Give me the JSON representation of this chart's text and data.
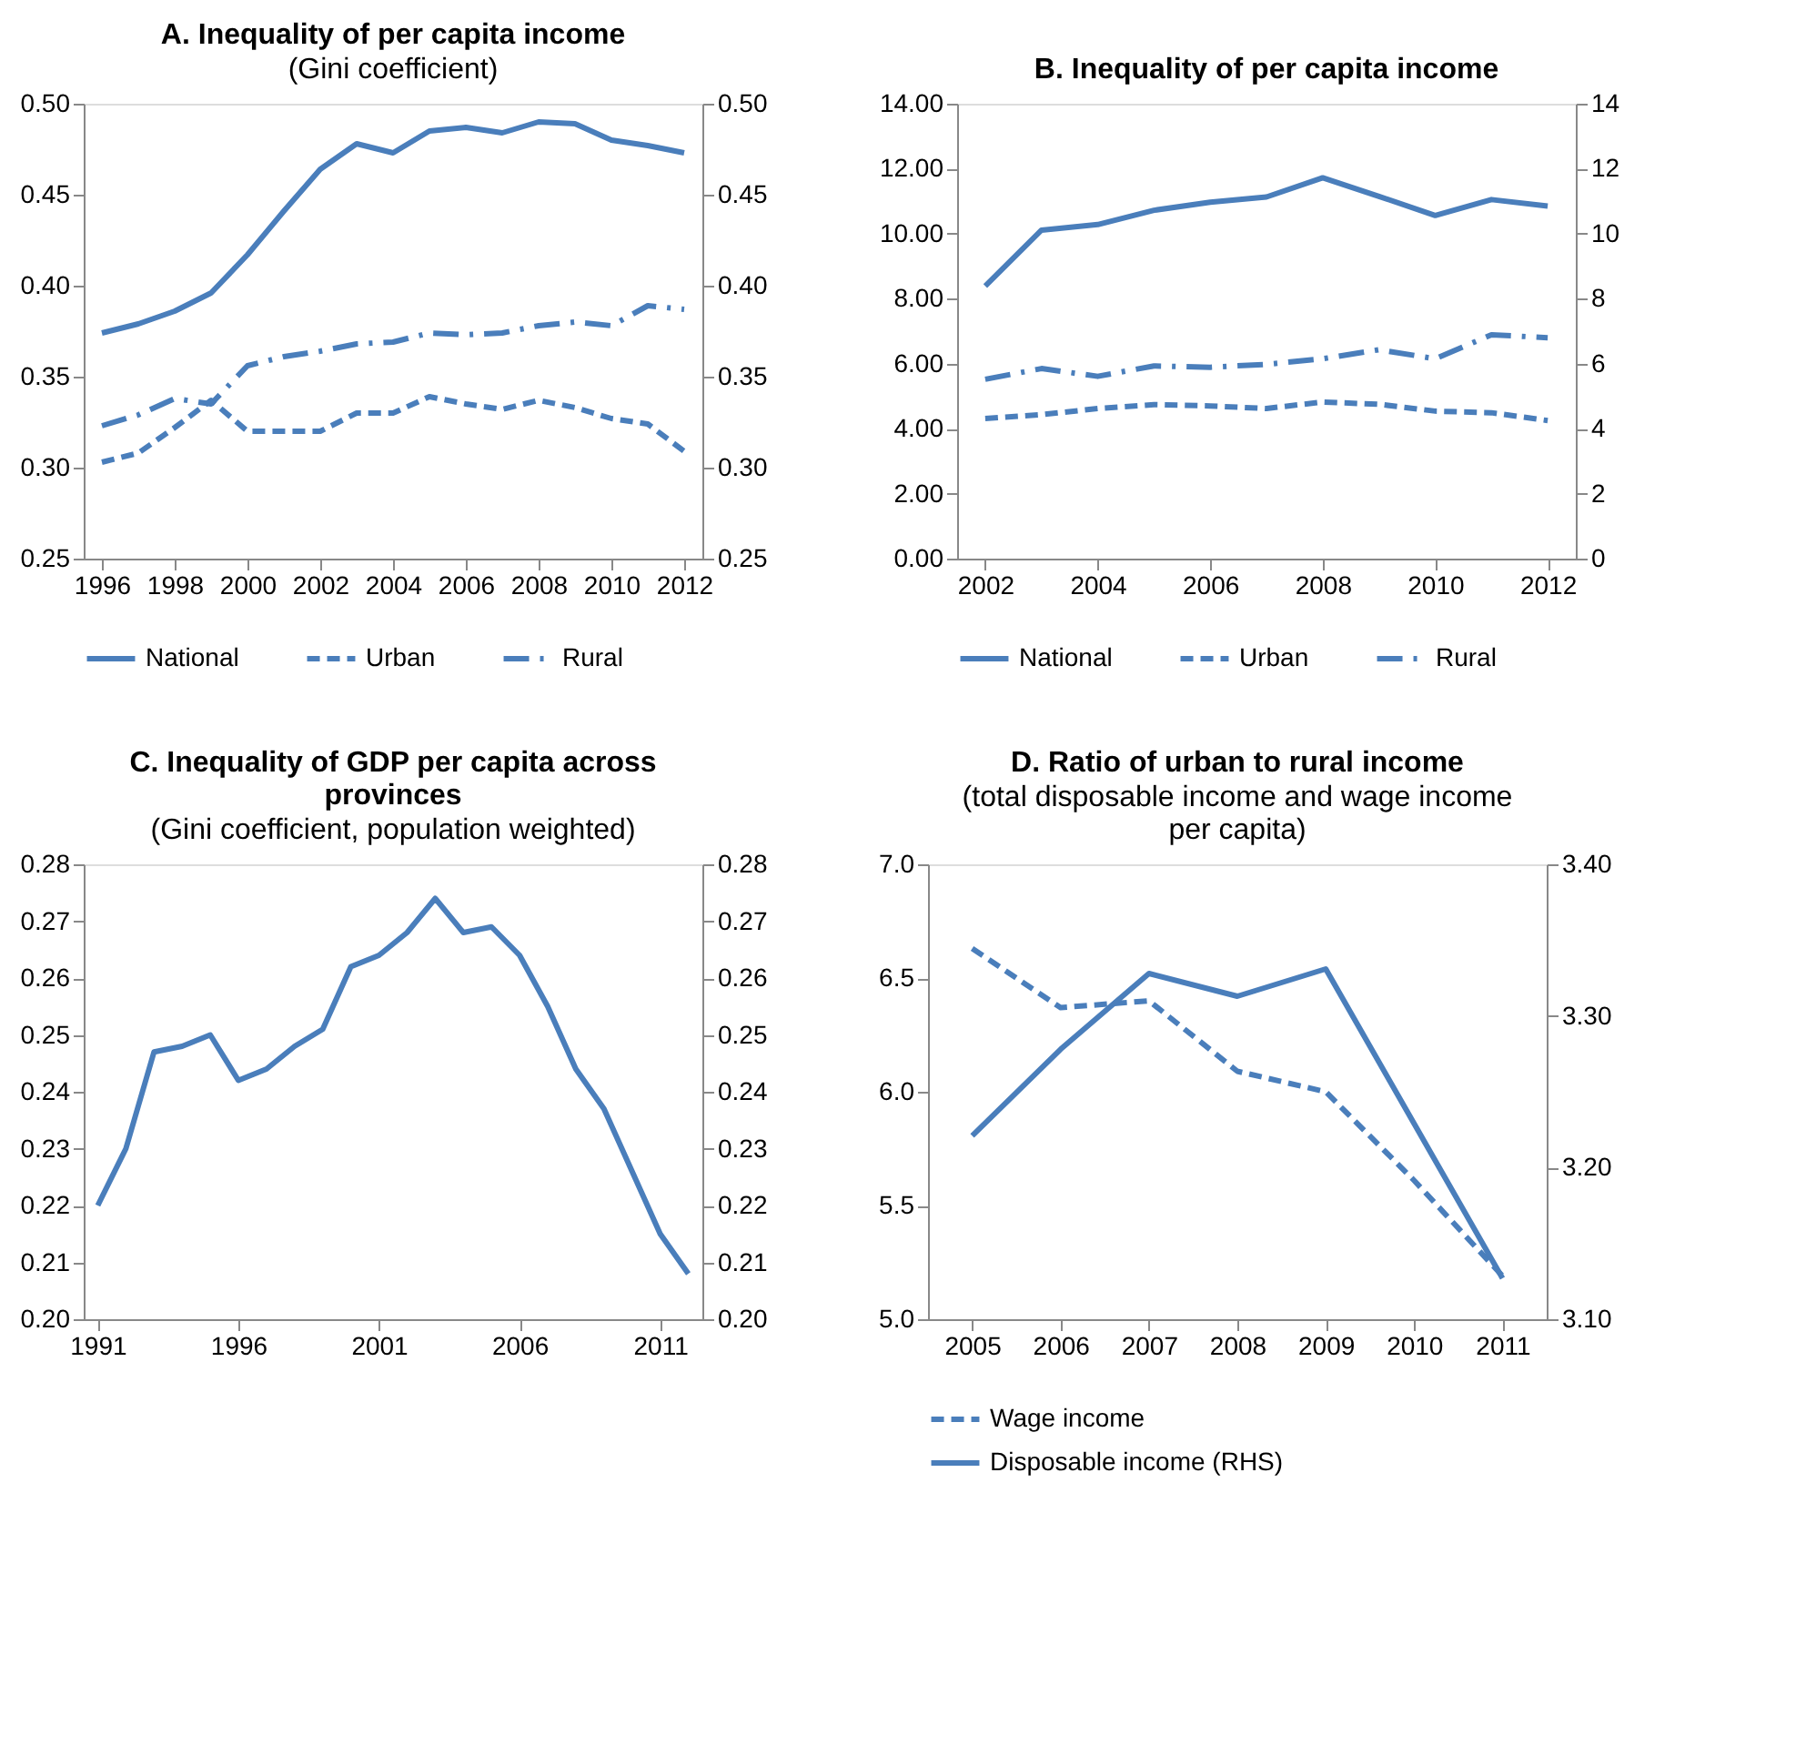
{
  "chart_data": [
    {
      "type": "line",
      "title": "A. Inequality  of per capita income",
      "subtitle": "(Gini coefficient)",
      "x": [
        1996,
        1997,
        1998,
        1999,
        2000,
        2001,
        2002,
        2003,
        2004,
        2005,
        2006,
        2007,
        2008,
        2009,
        2010,
        2011,
        2012
      ],
      "xlim": [
        1995.5,
        2012.5
      ],
      "xticks": [
        1996,
        1998,
        2000,
        2002,
        2004,
        2006,
        2008,
        2010,
        2012
      ],
      "ylim": [
        0.25,
        0.5
      ],
      "yticks": [
        {
          "value": 0.25,
          "label": "0.25"
        },
        {
          "value": 0.3,
          "label": "0.30"
        },
        {
          "value": 0.35,
          "label": "0.35"
        },
        {
          "value": 0.4,
          "label": "0.40"
        },
        {
          "value": 0.45,
          "label": "0.45"
        },
        {
          "value": 0.5,
          "label": "0.50"
        }
      ],
      "y2lim": [
        0.25,
        0.5
      ],
      "y2ticks": [
        {
          "value": 0.25,
          "label": "0.25"
        },
        {
          "value": 0.3,
          "label": "0.30"
        },
        {
          "value": 0.35,
          "label": "0.35"
        },
        {
          "value": 0.4,
          "label": "0.40"
        },
        {
          "value": 0.45,
          "label": "0.45"
        },
        {
          "value": 0.5,
          "label": "0.50"
        }
      ],
      "grid": false,
      "legend": "bottom",
      "series": [
        {
          "name": "National",
          "color": "#4a7ebb",
          "line_style": "solid",
          "values": [
            0.374,
            0.379,
            0.386,
            0.396,
            0.417,
            0.441,
            0.464,
            0.478,
            0.473,
            0.485,
            0.487,
            0.484,
            0.49,
            0.489,
            0.48,
            0.477,
            0.473
          ]
        },
        {
          "name": "Urban",
          "color": "#4a7ebb",
          "line_style": "dashed",
          "values": [
            0.303,
            0.308,
            0.322,
            0.337,
            0.32,
            0.32,
            0.32,
            0.33,
            0.33,
            0.339,
            0.335,
            0.332,
            0.337,
            0.333,
            0.327,
            0.324,
            0.309
          ]
        },
        {
          "name": "Rural",
          "color": "#4a7ebb",
          "line_style": "dashdot",
          "values": [
            0.323,
            0.329,
            0.338,
            0.335,
            0.356,
            0.361,
            0.364,
            0.368,
            0.369,
            0.374,
            0.373,
            0.374,
            0.378,
            0.38,
            0.378,
            0.389,
            0.387
          ]
        }
      ]
    },
    {
      "type": "line",
      "title": "B. Inequality  of per capita income",
      "x": [
        2002,
        2003,
        2004,
        2005,
        2006,
        2007,
        2008,
        2009,
        2010,
        2011,
        2012
      ],
      "xlim": [
        2001.5,
        2012.5
      ],
      "xticks": [
        2002,
        2004,
        2006,
        2008,
        2010,
        2012
      ],
      "ylim": [
        0,
        14
      ],
      "yticks": [
        {
          "value": 0,
          "label": "0.00"
        },
        {
          "value": 2,
          "label": "2.00"
        },
        {
          "value": 4,
          "label": "4.00"
        },
        {
          "value": 6,
          "label": "6.00"
        },
        {
          "value": 8,
          "label": "8.00"
        },
        {
          "value": 10,
          "label": "10.00"
        },
        {
          "value": 12,
          "label": "12.00"
        },
        {
          "value": 14,
          "label": "14.00"
        }
      ],
      "y2lim": [
        0,
        14
      ],
      "y2ticks": [
        0,
        2,
        4,
        6,
        8,
        10,
        12,
        14
      ],
      "grid": false,
      "legend": "bottom",
      "series": [
        {
          "name": "National",
          "color": "#4a7ebb",
          "line_style": "solid",
          "values": [
            8.39,
            10.11,
            10.28,
            10.72,
            10.97,
            11.13,
            11.72,
            11.15,
            10.56,
            11.05,
            10.85
          ]
        },
        {
          "name": "Urban",
          "color": "#4a7ebb",
          "line_style": "dashed",
          "values": [
            4.31,
            4.43,
            4.62,
            4.74,
            4.7,
            4.62,
            4.82,
            4.75,
            4.54,
            4.49,
            4.25
          ]
        },
        {
          "name": "Rural",
          "color": "#4a7ebb",
          "line_style": "dashdot",
          "values": [
            5.52,
            5.85,
            5.61,
            5.93,
            5.89,
            5.98,
            6.15,
            6.43,
            6.15,
            6.89,
            6.8
          ]
        }
      ]
    },
    {
      "type": "line",
      "title": "C. Inequality  of GDP per capita across provinces",
      "subtitle": "(Gini coefficient, population weighted)",
      "x": [
        1991,
        1992,
        1993,
        1994,
        1995,
        1996,
        1997,
        1998,
        1999,
        2000,
        2001,
        2002,
        2003,
        2004,
        2005,
        2006,
        2007,
        2008,
        2009,
        2010,
        2011,
        2012
      ],
      "xlim": [
        1990.5,
        2012.5
      ],
      "xticks": [
        1991,
        1996,
        2001,
        2006,
        2011
      ],
      "ylim": [
        0.2,
        0.28
      ],
      "yticks": [
        {
          "value": 0.2,
          "label": "0.20"
        },
        0.21,
        0.22,
        0.23,
        0.24,
        0.25,
        0.26,
        0.27,
        0.28
      ],
      "y2lim": [
        0.2,
        0.28
      ],
      "y2ticks": [
        {
          "value": 0.2,
          "label": "0.20"
        },
        0.21,
        0.22,
        0.23,
        0.24,
        0.25,
        0.26,
        0.27,
        0.28
      ],
      "grid": false,
      "legend": false,
      "series": [
        {
          "color": "#4a7ebb",
          "line_style": "solid",
          "values": [
            0.22,
            0.23,
            0.247,
            0.248,
            0.25,
            0.242,
            0.244,
            0.248,
            0.251,
            0.262,
            0.264,
            0.268,
            0.274,
            0.268,
            0.269,
            0.264,
            0.255,
            0.244,
            0.237,
            0.226,
            0.215,
            0.208
          ]
        }
      ]
    },
    {
      "type": "line",
      "title": "D. Ratio of urban to rural income",
      "subtitle": "(total disposable income and wage income per capita)",
      "categories": [
        "2005",
        "2006",
        "2007",
        "2008",
        "2009",
        "2010",
        "2011"
      ],
      "ylim": [
        5.0,
        7.0
      ],
      "yticks": [
        {
          "value": 5,
          "label": "5.0"
        },
        5.5,
        {
          "value": 6,
          "label": "6.0"
        },
        6.5,
        {
          "value": 7,
          "label": "7.0"
        }
      ],
      "y2lim": [
        3.1,
        3.4
      ],
      "y2ticks": [
        {
          "value": 3.1,
          "label": "3.10"
        },
        {
          "value": 3.2,
          "label": "3.20"
        },
        {
          "value": 3.3,
          "label": "3.30"
        },
        {
          "value": 3.4,
          "label": "3.40"
        }
      ],
      "grid": false,
      "legend": "bottom",
      "series": [
        {
          "name": "Wage income",
          "color": "#4a7ebb",
          "line_style": "dashed",
          "values": [
            6.63,
            6.37,
            6.4,
            6.09,
            6.0,
            5.61,
            5.19
          ]
        },
        {
          "name": "Disposable income (RHS)",
          "color": "#4a7ebb",
          "line_style": "solid",
          "axis": "y2",
          "values": [
            3.221,
            3.278,
            3.328,
            3.313,
            3.331,
            3.229,
            3.127
          ]
        }
      ]
    }
  ]
}
